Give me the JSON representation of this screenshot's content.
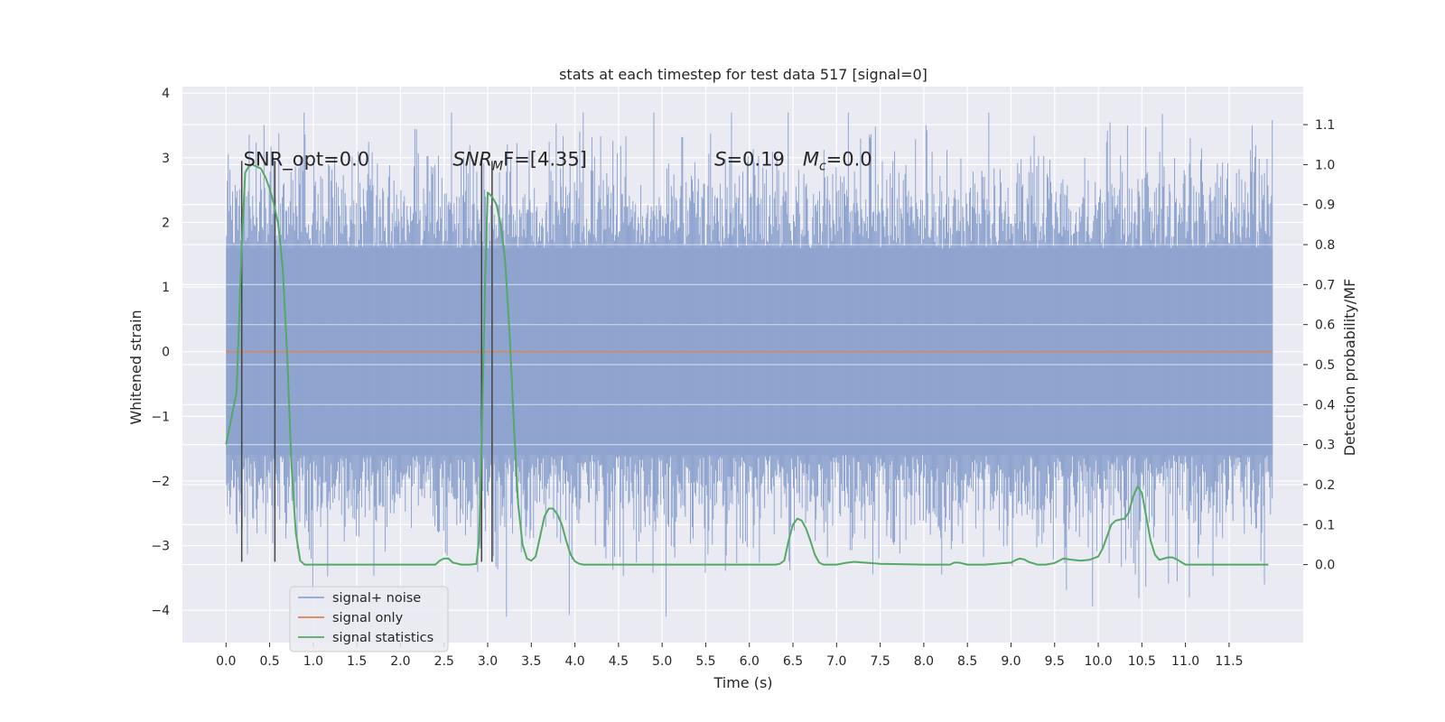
{
  "chart_data": {
    "type": "line",
    "title": "stats at each timestep for test data 517 [signal=0]",
    "xlabel": "Time (s)",
    "ylabel_left": "Whitened strain",
    "ylabel_right": "Detection probability/MF",
    "xlim": [
      -0.5,
      12.35
    ],
    "ylim_left": [
      -4.5,
      4.1
    ],
    "ylim_right": [
      -0.195,
      1.195
    ],
    "x_ticks": [
      0.0,
      0.5,
      1.0,
      1.5,
      2.0,
      2.5,
      3.0,
      3.5,
      4.0,
      4.5,
      5.0,
      5.5,
      6.0,
      6.5,
      7.0,
      7.5,
      8.0,
      8.5,
      9.0,
      9.5,
      10.0,
      10.5,
      11.0,
      11.5
    ],
    "x_tick_labels": [
      "0.0",
      "0.5",
      "1.0",
      "1.5",
      "2.0",
      "2.5",
      "3.0",
      "3.5",
      "4.0",
      "4.5",
      "5.0",
      "5.5",
      "6.0",
      "6.5",
      "7.0",
      "7.5",
      "8.0",
      "8.5",
      "9.0",
      "9.5",
      "10.0",
      "10.5",
      "11.0",
      "11.5"
    ],
    "y_left_ticks": [
      -4,
      -3,
      -2,
      -1,
      0,
      1,
      2,
      3,
      4
    ],
    "y_left_tick_labels": [
      "−4",
      "−3",
      "−2",
      "−1",
      "0",
      "1",
      "2",
      "3",
      "4"
    ],
    "y_right_ticks": [
      0.0,
      0.1,
      0.2,
      0.3,
      0.4,
      0.5,
      0.6,
      0.7,
      0.8,
      0.9,
      1.0,
      1.1
    ],
    "y_right_tick_labels": [
      "0.0",
      "0.1",
      "0.2",
      "0.3",
      "0.4",
      "0.5",
      "0.6",
      "0.7",
      "0.8",
      "0.9",
      "1.0",
      "1.1"
    ],
    "grid": true,
    "legend": {
      "placement": "lower-left",
      "entries": [
        "signal+ noise",
        "signal only",
        "signal statistics"
      ]
    },
    "annotations": [
      {
        "text": "SNR_opt=0.0",
        "x": 0.2,
        "y": 2.88
      },
      {
        "text_parts": [
          "SNR",
          "M",
          "F=[4.35]"
        ],
        "x": 2.6,
        "y": 2.88
      },
      {
        "text_parts": [
          "S",
          "=0.19   ",
          "M",
          "c",
          "=0.0"
        ],
        "x": 5.6,
        "y": 2.88
      }
    ],
    "vertical_lines": [
      {
        "x": 0.18,
        "y_top": 2.95,
        "y_bottom": -3.25
      },
      {
        "x": 0.56,
        "y_top": 2.95,
        "y_bottom": -3.25
      },
      {
        "x": 2.93,
        "y_top": 2.95,
        "y_bottom": -3.25
      },
      {
        "x": 3.05,
        "y_top": 2.95,
        "y_bottom": -3.25
      }
    ],
    "series": [
      {
        "name": "signal+ noise",
        "axis": "left",
        "color": "#8fa4cf",
        "x_range": [
          0.0,
          12.0
        ],
        "n_bars": 1200,
        "core_band": [
          -1.6,
          1.6
        ],
        "noise_sigma": 1.0,
        "approx_extremes": [
          -4.1,
          3.7
        ]
      },
      {
        "name": "signal only",
        "axis": "left",
        "color": "#dd8452",
        "x": [
          0.0,
          12.0
        ],
        "y": [
          0.0,
          0.0
        ]
      },
      {
        "name": "signal statistics",
        "axis": "right",
        "color": "#55a868",
        "x": [
          0.0,
          0.12,
          0.18,
          0.22,
          0.26,
          0.3,
          0.4,
          0.45,
          0.5,
          0.55,
          0.6,
          0.65,
          0.7,
          0.75,
          0.8,
          0.85,
          0.9,
          1.0,
          1.5,
          2.0,
          2.2,
          2.3,
          2.4,
          2.45,
          2.5,
          2.55,
          2.6,
          2.7,
          2.8,
          2.87,
          2.9,
          2.93,
          2.97,
          3.0,
          3.05,
          3.1,
          3.15,
          3.2,
          3.25,
          3.3,
          3.35,
          3.4,
          3.45,
          3.5,
          3.55,
          3.6,
          3.65,
          3.7,
          3.75,
          3.8,
          3.85,
          3.9,
          3.95,
          4.0,
          4.05,
          4.1,
          4.2,
          4.5,
          5.0,
          5.5,
          6.0,
          6.3,
          6.35,
          6.4,
          6.45,
          6.5,
          6.55,
          6.6,
          6.65,
          6.7,
          6.75,
          6.8,
          6.85,
          6.9,
          7.0,
          7.1,
          7.2,
          7.5,
          8.0,
          8.3,
          8.35,
          8.4,
          8.5,
          8.7,
          9.0,
          9.05,
          9.1,
          9.15,
          9.2,
          9.3,
          9.4,
          9.5,
          9.6,
          9.7,
          9.8,
          9.9,
          10.0,
          10.05,
          10.1,
          10.15,
          10.2,
          10.3,
          10.35,
          10.4,
          10.45,
          10.5,
          10.55,
          10.6,
          10.65,
          10.7,
          10.8,
          10.85,
          10.9,
          11.0,
          11.5,
          11.8,
          11.95
        ],
        "y": [
          0.3,
          0.43,
          0.8,
          0.98,
          0.995,
          1.0,
          0.99,
          0.97,
          0.94,
          0.9,
          0.85,
          0.74,
          0.53,
          0.25,
          0.08,
          0.01,
          0.0,
          0.0,
          0.0,
          0.0,
          0.0,
          0.0,
          0.0,
          0.01,
          0.015,
          0.015,
          0.005,
          0.0,
          0.0,
          0.002,
          0.06,
          0.3,
          0.7,
          0.93,
          0.92,
          0.9,
          0.85,
          0.76,
          0.58,
          0.35,
          0.15,
          0.05,
          0.015,
          0.01,
          0.02,
          0.07,
          0.12,
          0.14,
          0.14,
          0.125,
          0.1,
          0.06,
          0.025,
          0.008,
          0.002,
          0.0,
          0.0,
          0.0,
          0.0,
          0.0,
          0.0,
          0.0,
          0.002,
          0.01,
          0.06,
          0.1,
          0.115,
          0.11,
          0.09,
          0.06,
          0.025,
          0.005,
          0.0,
          0.0,
          0.0,
          0.004,
          0.007,
          0.002,
          0.0,
          0.0,
          0.005,
          0.005,
          0.0,
          0.0,
          0.005,
          0.011,
          0.015,
          0.013,
          0.007,
          0.0,
          0.0,
          0.004,
          0.015,
          0.012,
          0.01,
          0.012,
          0.02,
          0.04,
          0.07,
          0.1,
          0.11,
          0.115,
          0.13,
          0.17,
          0.195,
          0.18,
          0.12,
          0.06,
          0.025,
          0.012,
          0.018,
          0.018,
          0.013,
          0.0,
          0.0,
          0.0,
          0.0
        ]
      }
    ]
  }
}
